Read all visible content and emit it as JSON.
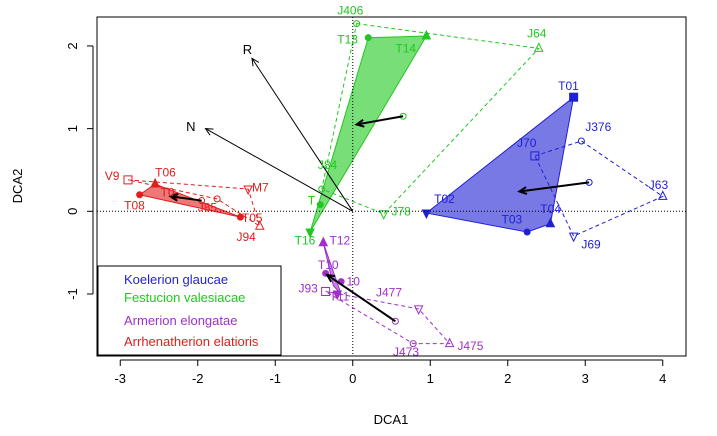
{
  "chart_data": {
    "type": "scatter",
    "xlabel": "DCA1",
    "ylabel": "DCA2",
    "xlim": [
      -3.3,
      4.3
    ],
    "ylim": [
      -1.75,
      2.35
    ],
    "xticks": [
      -3,
      -2,
      -1,
      0,
      1,
      2,
      3,
      4
    ],
    "yticks": [
      -1,
      0,
      1,
      2
    ],
    "reference_lines": [
      {
        "axis": "x",
        "value": 0,
        "style": "dotted"
      },
      {
        "axis": "y",
        "value": 0,
        "style": "dotted"
      }
    ],
    "legend_placement": "bottom-left",
    "groups": [
      {
        "name": "Koelerion glaucae",
        "color": "#1f1fd6",
        "hull": [
          [
            0.95,
            -0.02
          ],
          [
            2.85,
            1.38
          ],
          [
            2.55,
            -0.15
          ],
          [
            2.25,
            -0.25
          ]
        ],
        "releves": [
          {
            "label": "T01",
            "x": 2.85,
            "y": 1.38,
            "marker": "square",
            "lx": 2.65,
            "ly": 1.47
          },
          {
            "label": "T02",
            "x": 0.95,
            "y": -0.02,
            "marker": "triangle-down",
            "lx": 1.05,
            "ly": 0.1
          },
          {
            "label": "T03",
            "x": 2.25,
            "y": -0.25,
            "marker": "circle",
            "lx": 1.92,
            "ly": -0.15
          },
          {
            "label": "T04",
            "x": 2.55,
            "y": -0.15,
            "marker": "triangle",
            "lx": 2.42,
            "ly": -0.02
          }
        ],
        "plots": [
          {
            "label": "J70",
            "x": 2.35,
            "y": 0.67,
            "marker": "square",
            "lx": 2.12,
            "ly": 0.78
          },
          {
            "label": "J376",
            "x": 2.95,
            "y": 0.85,
            "marker": "circle",
            "lx": 3.0,
            "ly": 0.97
          },
          {
            "label": "J63",
            "x": 4.0,
            "y": 0.18,
            "marker": "triangle",
            "lx": 3.82,
            "ly": 0.27
          },
          {
            "label": "J69",
            "x": 2.85,
            "y": -0.3,
            "marker": "triangle-down",
            "lx": 2.95,
            "ly": -0.45
          }
        ],
        "hull_plots": [
          [
            2.35,
            0.67
          ],
          [
            2.95,
            0.85
          ],
          [
            4.0,
            0.18
          ],
          [
            2.85,
            -0.3
          ]
        ],
        "centroid_releves": [
          2.15,
          0.24
        ],
        "centroid_plots": [
          3.05,
          0.35
        ]
      },
      {
        "name": "Festucion valesiacae",
        "color": "#1ec81e",
        "hull": [
          [
            -0.55,
            -0.25
          ],
          [
            0.2,
            2.1
          ],
          [
            0.95,
            2.12
          ]
        ],
        "releves": [
          {
            "label": "T13",
            "x": 0.2,
            "y": 2.1,
            "marker": "circle",
            "lx": -0.2,
            "ly": 2.03
          },
          {
            "label": "T14",
            "x": 0.95,
            "y": 2.12,
            "marker": "triangle",
            "lx": 0.55,
            "ly": 1.92
          },
          {
            "label": "T16",
            "x": -0.55,
            "y": -0.25,
            "marker": "triangle-down",
            "lx": -0.75,
            "ly": -0.4
          },
          {
            "label": "T",
            "x": -0.42,
            "y": 0.08,
            "marker": "circle",
            "lx": -0.58,
            "ly": 0.08
          }
        ],
        "plots": [
          {
            "label": "J406",
            "x": 0.05,
            "y": 2.27,
            "marker": "circle",
            "lx": -0.2,
            "ly": 2.38
          },
          {
            "label": "J64",
            "x": 2.4,
            "y": 1.97,
            "marker": "triangle",
            "lx": 2.25,
            "ly": 2.1
          },
          {
            "label": "J78",
            "x": 0.4,
            "y": -0.03,
            "marker": "triangle-down",
            "lx": 0.5,
            "ly": -0.05
          },
          {
            "label": "J84",
            "x": -0.4,
            "y": 0.27,
            "marker": "circle",
            "lx": -0.45,
            "ly": 0.51
          }
        ],
        "hull_plots": [
          [
            0.05,
            2.27
          ],
          [
            2.4,
            1.97
          ],
          [
            0.4,
            -0.03
          ],
          [
            -0.4,
            0.27
          ]
        ],
        "centroid_releves": [
          0.05,
          1.05
        ],
        "centroid_plots": [
          0.65,
          1.15
        ]
      },
      {
        "name": "Armerion elongatae",
        "color": "#a030c8",
        "hull": [
          [
            -0.38,
            -0.38
          ],
          [
            -0.15,
            -1.0
          ],
          [
            -0.25,
            -0.9
          ]
        ],
        "releves": [
          {
            "label": "T12",
            "x": -0.38,
            "y": -0.38,
            "marker": "triangle",
            "lx": -0.3,
            "ly": -0.4
          },
          {
            "label": "T10",
            "x": -0.35,
            "y": -0.75,
            "marker": "circle",
            "lx": -0.45,
            "ly": -0.7
          },
          {
            "label": "T11",
            "x": -0.2,
            "y": -1.0,
            "marker": "triangle-down",
            "lx": -0.3,
            "ly": -1.08
          },
          {
            "label": "10",
            "x": -0.15,
            "y": -0.85,
            "marker": "circle",
            "lx": -0.08,
            "ly": -0.9
          }
        ],
        "plots": [
          {
            "label": "J93",
            "x": -0.35,
            "y": -0.97,
            "marker": "square",
            "lx": -0.7,
            "ly": -0.98
          },
          {
            "label": "J477",
            "x": 0.85,
            "y": -1.18,
            "marker": "triangle-down",
            "lx": 0.3,
            "ly": -1.03
          },
          {
            "label": "J473",
            "x": 0.78,
            "y": -1.6,
            "marker": "circle",
            "lx": 0.52,
            "ly": -1.75
          },
          {
            "label": "J475",
            "x": 1.25,
            "y": -1.6,
            "marker": "triangle",
            "lx": 1.35,
            "ly": -1.68
          }
        ],
        "hull_plots": [
          [
            -0.35,
            -0.97
          ],
          [
            0.85,
            -1.18
          ],
          [
            1.25,
            -1.6
          ],
          [
            0.78,
            -1.6
          ]
        ],
        "centroid_releves": [
          -0.33,
          -0.77
        ],
        "centroid_plots": [
          0.55,
          -1.33
        ]
      },
      {
        "name": "Arrhenatherion elatioris",
        "color": "#e01e1e",
        "hull": [
          [
            -2.75,
            0.2
          ],
          [
            -2.55,
            0.33
          ],
          [
            -1.45,
            -0.07
          ]
        ],
        "releves": [
          {
            "label": "T06",
            "x": -2.55,
            "y": 0.33,
            "marker": "triangle",
            "lx": -2.55,
            "ly": 0.42
          },
          {
            "label": "T08",
            "x": -2.75,
            "y": 0.2,
            "marker": "circle",
            "lx": -2.95,
            "ly": 0.02
          },
          {
            "label": "T05",
            "x": -1.45,
            "y": -0.07,
            "marker": "circle",
            "lx": -1.43,
            "ly": -0.13
          },
          {
            "label": "T0",
            "x": -2.3,
            "y": 0.18,
            "marker": "circle",
            "lx": -2.48,
            "ly": 0.18
          }
        ],
        "plots": [
          {
            "label": "V9",
            "x": -2.9,
            "y": 0.38,
            "marker": "square",
            "lx": -3.2,
            "ly": 0.38
          },
          {
            "label": "M7",
            "x": -1.35,
            "y": 0.27,
            "marker": "triangle-down",
            "lx": -1.3,
            "ly": 0.24
          },
          {
            "label": "J94",
            "x": -1.2,
            "y": -0.18,
            "marker": "triangle",
            "lx": -1.5,
            "ly": -0.36
          },
          {
            "label": "J85",
            "x": -1.75,
            "y": 0.15,
            "marker": "circle",
            "lx": -2.0,
            "ly": 0.0
          }
        ],
        "hull_plots": [
          [
            -2.9,
            0.38
          ],
          [
            -1.35,
            0.27
          ],
          [
            -1.2,
            -0.18
          ],
          [
            -1.75,
            0.15
          ]
        ],
        "centroid_releves": [
          -2.35,
          0.18
        ],
        "centroid_plots": [
          -1.95,
          0.13
        ]
      }
    ],
    "environment_vectors": [
      {
        "label": "R",
        "x": -1.3,
        "y": 1.85,
        "lx": -1.42,
        "ly": 1.9
      },
      {
        "label": "N",
        "x": -1.9,
        "y": 1.0,
        "lx": -2.15,
        "ly": 0.97
      }
    ]
  }
}
